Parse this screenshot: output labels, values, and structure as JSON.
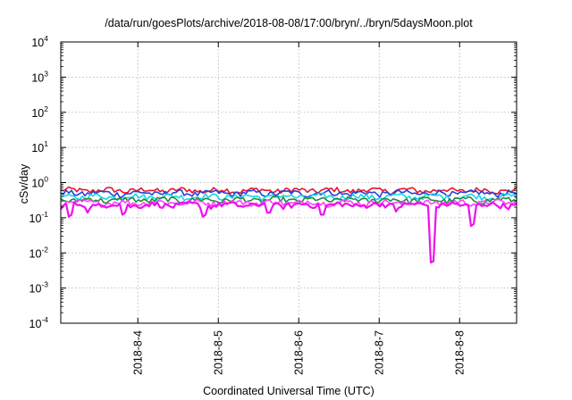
{
  "chart_data": {
    "type": "line",
    "title": "/data/run/goesPlots/archive/2018-08-08/17:00/bryn/../bryn/5daysMoon.plot",
    "xlabel": "Coordinated Universal Time (UTC)",
    "ylabel": "cSv/day",
    "yscale": "log",
    "ylim": [
      0.0001,
      10000
    ],
    "xlim": [
      "2018-08-03T01:00",
      "2018-08-08T17:00"
    ],
    "y_ticks": [
      {
        "base": "10",
        "exp": "-4"
      },
      {
        "base": "10",
        "exp": "-3"
      },
      {
        "base": "10",
        "exp": "-2"
      },
      {
        "base": "10",
        "exp": "-1"
      },
      {
        "base": "10",
        "exp": "0"
      },
      {
        "base": "10",
        "exp": "1"
      },
      {
        "base": "10",
        "exp": "2"
      },
      {
        "base": "10",
        "exp": "3"
      },
      {
        "base": "10",
        "exp": "4"
      }
    ],
    "x_ticks": [
      "2018-8-4",
      "2018-8-5",
      "2018-8-6",
      "2018-8-7",
      "2018-8-8"
    ],
    "x_tick_dates": [
      "2018-08-04T00:00",
      "2018-08-05T00:00",
      "2018-08-06T00:00",
      "2018-08-07T00:00",
      "2018-08-08T00:00"
    ],
    "grid": true,
    "series": [
      {
        "color": "#e8142c",
        "base": 0.6,
        "spikes": []
      },
      {
        "color": "#2b3fd6",
        "base": 0.5,
        "spikes": []
      },
      {
        "color": "#10d8e8",
        "base": 0.4,
        "spikes": []
      },
      {
        "color": "#1e8c3c",
        "base": 0.32,
        "spikes": []
      },
      {
        "color": "#ff40ff",
        "base": 0.27,
        "spikes": []
      },
      {
        "color": "#ee10ee",
        "base": 0.23,
        "spikes": [
          {
            "x": "2018-08-03T04:00",
            "value": 0.13
          },
          {
            "x": "2018-08-03T09:00",
            "value": 0.14
          },
          {
            "x": "2018-08-03T20:00",
            "value": 0.15
          },
          {
            "x": "2018-08-04T20:00",
            "value": 0.13
          },
          {
            "x": "2018-08-05T15:00",
            "value": 0.16
          },
          {
            "x": "2018-08-06T07:00",
            "value": 0.14
          },
          {
            "x": "2018-08-07T05:00",
            "value": 0.15
          },
          {
            "x": "2018-08-07T16:00",
            "value": 0.006
          },
          {
            "x": "2018-08-08T04:00",
            "value": 0.07
          }
        ]
      }
    ]
  }
}
